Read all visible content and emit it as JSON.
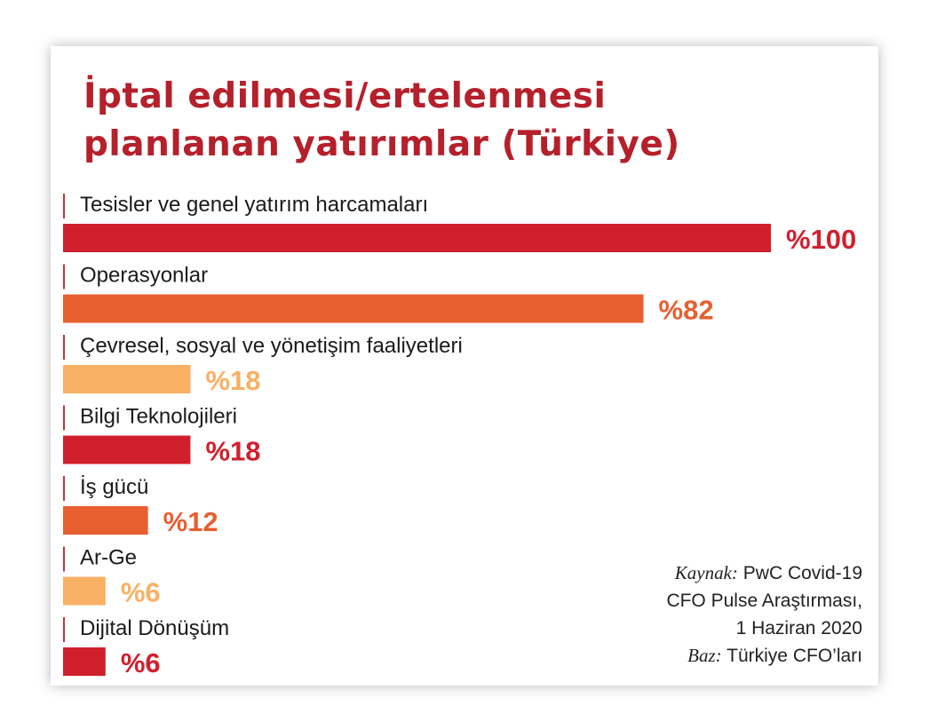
{
  "title_line1": "İptal edilmesi/ertelenmesi",
  "title_line2": "planlanan yatırımlar (Türkiye)",
  "colors": {
    "title": "#b5202b",
    "divider": "#c93338"
  },
  "chart_data": {
    "type": "bar",
    "orientation": "horizontal",
    "title": "İptal edilmesi/ertelenmesi planlanan yatırımlar (Türkiye)",
    "xlim": [
      0,
      100
    ],
    "grid": false,
    "legend": "none",
    "categories": [
      "Tesisler ve genel yatırım harcamaları",
      "Operasyonlar",
      "Çevresel, sosyal ve yönetişim faaliyetleri",
      "Bilgi Teknolojileri",
      "İş gücü",
      "Ar-Ge",
      "Dijital Dönüşüm"
    ],
    "values": [
      100,
      82,
      18,
      18,
      12,
      6,
      6
    ],
    "value_labels": [
      "%100",
      "%82",
      "%18",
      "%18",
      "%12",
      "%6",
      "%6"
    ],
    "colors": [
      "#d0202e",
      "#e85f30",
      "#f9b064",
      "#d0202e",
      "#e85f30",
      "#f9b064",
      "#d0202e"
    ]
  },
  "source": {
    "kaynak_label": "Kaynak:",
    "kaynak_line1": "PwC Covid-19",
    "line2": "CFO Pulse Araştırması,",
    "line3": "1 Haziran 2020",
    "baz_label": "Baz:",
    "baz_text": "Türkiye CFO’ları"
  }
}
